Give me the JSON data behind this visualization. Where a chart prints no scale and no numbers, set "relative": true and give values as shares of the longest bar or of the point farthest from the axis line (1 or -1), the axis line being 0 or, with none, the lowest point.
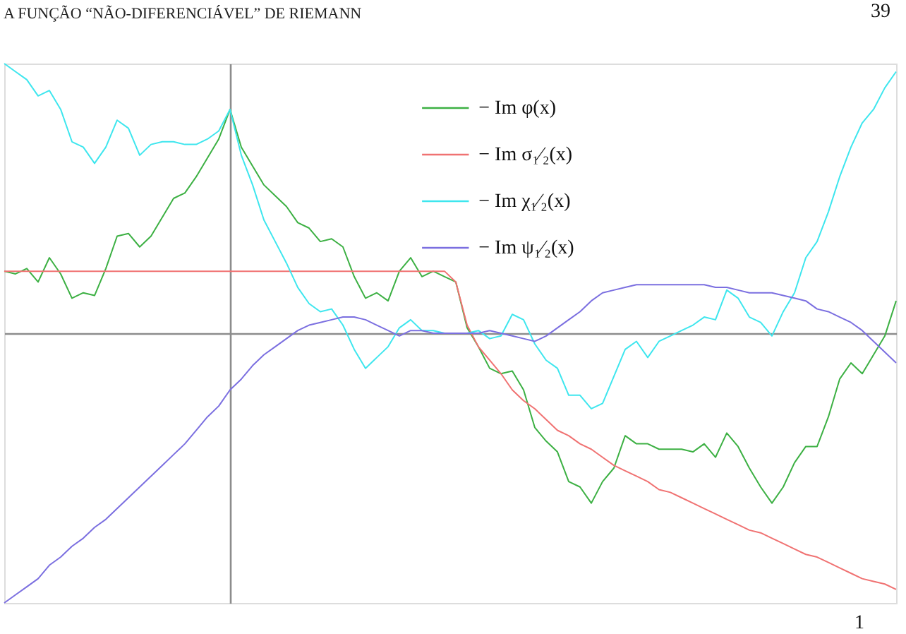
{
  "chart_data": {
    "type": "line",
    "title": "A FUNÇÃO “NÃO-DIFERENCIÁVEL” DE RIEMANN",
    "annotations": [
      "39",
      "1"
    ],
    "relative": true,
    "legend": "top",
    "categories": [
      null,
      null,
      null,
      null,
      null,
      null,
      null,
      null,
      null,
      null,
      null,
      null,
      null,
      null,
      null,
      null,
      null,
      null,
      null,
      null,
      null,
      null,
      null,
      null,
      null,
      null,
      null,
      null,
      null,
      null,
      null,
      null,
      null,
      null,
      null,
      null,
      null,
      null,
      null,
      null,
      null,
      null,
      null,
      null,
      null,
      null,
      null,
      null,
      null,
      null,
      null,
      null,
      null,
      null,
      null,
      null,
      null,
      null,
      null,
      null,
      null,
      null,
      null,
      null,
      null,
      null,
      null,
      null,
      null,
      null,
      null,
      null,
      null,
      null,
      null,
      null,
      null,
      null,
      null,
      null
    ],
    "series": [
      {
        "name": "− Im φ(x)",
        "color": "#3cb043",
        "values": [
          0.23,
          0.22,
          0.24,
          0.19,
          0.28,
          0.22,
          0.13,
          0.15,
          0.14,
          0.24,
          0.36,
          0.37,
          0.32,
          0.36,
          0.43,
          0.5,
          0.52,
          0.58,
          0.65,
          0.72,
          0.83,
          0.69,
          0.62,
          0.55,
          0.51,
          0.47,
          0.41,
          0.39,
          0.34,
          0.35,
          0.32,
          0.21,
          0.13,
          0.15,
          0.12,
          0.23,
          0.28,
          0.21,
          0.23,
          0.21,
          0.19,
          0.02,
          -0.05,
          -0.13,
          -0.15,
          -0.14,
          -0.21,
          -0.35,
          -0.4,
          -0.44,
          -0.55,
          -0.57,
          -0.63,
          -0.55,
          -0.5,
          -0.38,
          -0.41,
          -0.41,
          -0.43,
          -0.43,
          -0.43,
          -0.44,
          -0.41,
          -0.46,
          -0.37,
          -0.42,
          -0.5,
          -0.57,
          -0.63,
          -0.57,
          -0.48,
          -0.42,
          -0.42,
          -0.31,
          -0.17,
          -0.11,
          -0.15,
          -0.08,
          -0.01,
          0.12
        ]
      },
      {
        "name": "− Im σ₁⁄₂(x)",
        "color": "#f07272",
        "values": [
          0.23,
          0.23,
          0.23,
          0.23,
          0.23,
          0.23,
          0.23,
          0.23,
          0.23,
          0.23,
          0.23,
          0.23,
          0.23,
          0.23,
          0.23,
          0.23,
          0.23,
          0.23,
          0.23,
          0.23,
          0.23,
          0.23,
          0.23,
          0.23,
          0.23,
          0.23,
          0.23,
          0.23,
          0.23,
          0.23,
          0.23,
          0.23,
          0.23,
          0.23,
          0.23,
          0.23,
          0.23,
          0.23,
          0.23,
          0.23,
          0.19,
          0.03,
          -0.05,
          -0.1,
          -0.15,
          -0.21,
          -0.25,
          -0.28,
          -0.32,
          -0.36,
          -0.38,
          -0.41,
          -0.43,
          -0.46,
          -0.49,
          -0.51,
          -0.53,
          -0.55,
          -0.58,
          -0.59,
          -0.61,
          -0.63,
          -0.65,
          -0.67,
          -0.69,
          -0.71,
          -0.73,
          -0.74,
          -0.76,
          -0.78,
          -0.8,
          -0.82,
          -0.83,
          -0.85,
          -0.87,
          -0.89,
          -0.91,
          -0.92,
          -0.93,
          -0.95
        ]
      },
      {
        "name": "− Im χ₁⁄₂(x)",
        "color": "#3ee6ee",
        "values": [
          1.0,
          0.97,
          0.94,
          0.88,
          0.9,
          0.83,
          0.71,
          0.69,
          0.63,
          0.69,
          0.79,
          0.76,
          0.66,
          0.7,
          0.71,
          0.71,
          0.7,
          0.7,
          0.72,
          0.75,
          0.83,
          0.66,
          0.55,
          0.42,
          0.34,
          0.26,
          0.17,
          0.11,
          0.08,
          0.09,
          0.03,
          -0.06,
          -0.13,
          -0.09,
          -0.05,
          0.02,
          0.05,
          0.01,
          0.01,
          0,
          0,
          0,
          0.01,
          -0.02,
          -0.01,
          0.07,
          0.05,
          -0.04,
          -0.1,
          -0.13,
          -0.23,
          -0.23,
          -0.28,
          -0.26,
          -0.16,
          -0.06,
          -0.03,
          -0.09,
          -0.03,
          -0.01,
          0.01,
          0.03,
          0.06,
          0.05,
          0.16,
          0.13,
          0.06,
          0.04,
          -0.01,
          0.08,
          0.15,
          0.28,
          0.34,
          0.45,
          0.58,
          0.69,
          0.78,
          0.83,
          0.91,
          0.97
        ]
      },
      {
        "name": "− Im ψ₁⁄₂(x)",
        "color": "#7b6fe0",
        "values": [
          -1.0,
          -0.97,
          -0.94,
          -0.91,
          -0.86,
          -0.83,
          -0.79,
          -0.76,
          -0.72,
          -0.69,
          -0.65,
          -0.61,
          -0.57,
          -0.53,
          -0.49,
          -0.45,
          -0.41,
          -0.36,
          -0.31,
          -0.27,
          -0.21,
          -0.17,
          -0.12,
          -0.08,
          -0.05,
          -0.02,
          0.01,
          0.03,
          0.04,
          0.05,
          0.06,
          0.06,
          0.05,
          0.03,
          0.01,
          -0.01,
          0.01,
          0.01,
          0,
          0,
          0,
          0,
          0,
          0.01,
          0,
          -0.01,
          -0.02,
          -0.03,
          -0.01,
          0.02,
          0.05,
          0.08,
          0.12,
          0.15,
          0.16,
          0.17,
          0.18,
          0.18,
          0.18,
          0.18,
          0.18,
          0.18,
          0.18,
          0.17,
          0.17,
          0.16,
          0.15,
          0.15,
          0.15,
          0.14,
          0.13,
          0.12,
          0.09,
          0.08,
          0.06,
          0.04,
          0.01,
          -0.03,
          -0.07,
          -0.11
        ]
      }
    ]
  }
}
